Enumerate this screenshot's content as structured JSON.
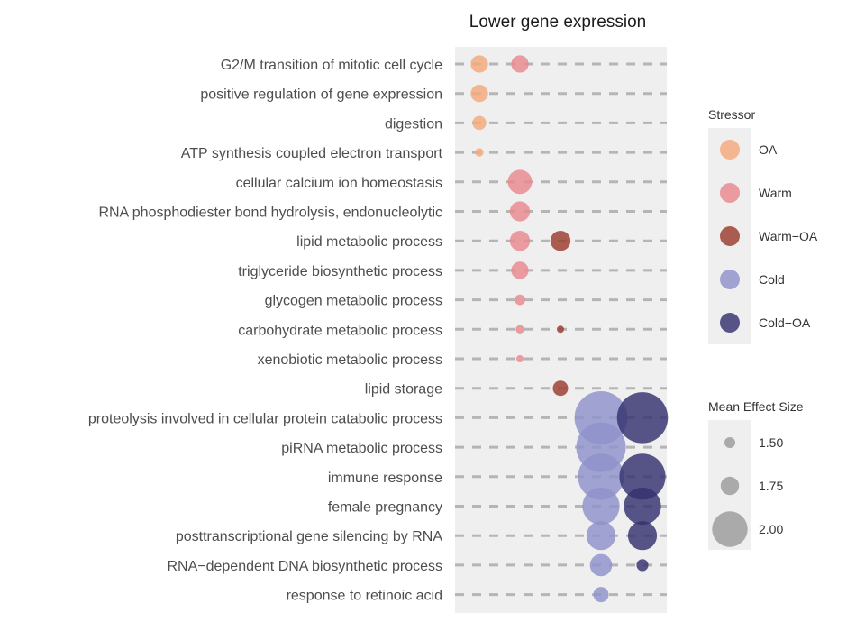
{
  "chart_data": {
    "type": "scatter",
    "title": "Lower gene expression",
    "xlabel": "",
    "ylabel": "",
    "grid": true,
    "terms": [
      "G2/M transition of mitotic cell cycle",
      "positive regulation of gene expression",
      "digestion",
      "ATP synthesis coupled electron transport",
      "cellular calcium ion homeostasis",
      "RNA phosphodiester bond hydrolysis, endonucleolytic",
      "lipid metabolic process",
      "triglyceride biosynthetic process",
      "glycogen metabolic process",
      "carbohydrate metabolic process",
      "xenobiotic metabolic process",
      "lipid storage",
      "proteolysis involved in cellular protein catabolic process",
      "piRNA metabolic process",
      "immune response",
      "female pregnancy",
      "posttranscriptional gene silencing by RNA",
      "RNA−dependent DNA biosynthetic process",
      "response to retinoic acid"
    ],
    "stressors": [
      "OA",
      "Warm",
      "Warm−OA",
      "Cold",
      "Cold−OA"
    ],
    "colors": {
      "OA": "#f4a97c",
      "Warm": "#e8898f",
      "Warm−OA": "#9c3c2e",
      "Cold": "#8f92cb",
      "Cold−OA": "#35326f"
    },
    "points": [
      {
        "term": "G2/M transition of mitotic cell cycle",
        "stressor": "OA",
        "size": 1.63
      },
      {
        "term": "G2/M transition of mitotic cell cycle",
        "stressor": "Warm",
        "size": 1.63
      },
      {
        "term": "positive regulation of gene expression",
        "stressor": "OA",
        "size": 1.63
      },
      {
        "term": "digestion",
        "stressor": "OA",
        "size": 1.58
      },
      {
        "term": "ATP synthesis coupled electron transport",
        "stressor": "OA",
        "size": 1.5
      },
      {
        "term": "cellular calcium ion homeostasis",
        "stressor": "Warm",
        "size": 1.73
      },
      {
        "term": "RNA phosphodiester bond hydrolysis, endonucleolytic",
        "stressor": "Warm",
        "size": 1.67
      },
      {
        "term": "lipid metabolic process",
        "stressor": "Warm",
        "size": 1.67
      },
      {
        "term": "lipid metabolic process",
        "stressor": "Warm−OA",
        "size": 1.67
      },
      {
        "term": "triglyceride biosynthetic process",
        "stressor": "Warm",
        "size": 1.63
      },
      {
        "term": "glycogen metabolic process",
        "stressor": "Warm",
        "size": 1.53
      },
      {
        "term": "carbohydrate metabolic process",
        "stressor": "Warm",
        "size": 1.5
      },
      {
        "term": "carbohydrate metabolic process",
        "stressor": "Warm−OA",
        "size": 1.45
      },
      {
        "term": "xenobiotic metabolic process",
        "stressor": "Warm",
        "size": 1.35
      },
      {
        "term": "lipid storage",
        "stressor": "Warm−OA",
        "size": 1.6
      },
      {
        "term": "proteolysis involved in cellular protein catabolic process",
        "stressor": "Cold",
        "size": 2.15
      },
      {
        "term": "proteolysis involved in cellular protein catabolic process",
        "stressor": "Cold−OA",
        "size": 2.12
      },
      {
        "term": "piRNA metabolic process",
        "stressor": "Cold",
        "size": 2.1
      },
      {
        "term": "immune response",
        "stressor": "Cold",
        "size": 2.05
      },
      {
        "term": "immune response",
        "stressor": "Cold−OA",
        "size": 2.05
      },
      {
        "term": "female pregnancy",
        "stressor": "Cold",
        "size": 1.92
      },
      {
        "term": "female pregnancy",
        "stressor": "Cold−OA",
        "size": 1.92
      },
      {
        "term": "posttranscriptional gene silencing by RNA",
        "stressor": "Cold",
        "size": 1.8
      },
      {
        "term": "posttranscriptional gene silencing by RNA",
        "stressor": "Cold−OA",
        "size": 1.8
      },
      {
        "term": "RNA−dependent DNA biosynthetic process",
        "stressor": "Cold",
        "size": 1.7
      },
      {
        "term": "RNA−dependent DNA biosynthetic process",
        "stressor": "Cold−OA",
        "size": 1.55
      },
      {
        "term": "response to retinoic acid",
        "stressor": "Cold",
        "size": 1.6
      }
    ],
    "legend": {
      "placement": "right",
      "color_title": "Stressor",
      "size_title": "Mean Effect Size",
      "size_breaks": [
        1.5,
        1.75,
        2.0
      ],
      "size_labels": [
        "1.50",
        "1.75",
        "2.00"
      ]
    }
  }
}
